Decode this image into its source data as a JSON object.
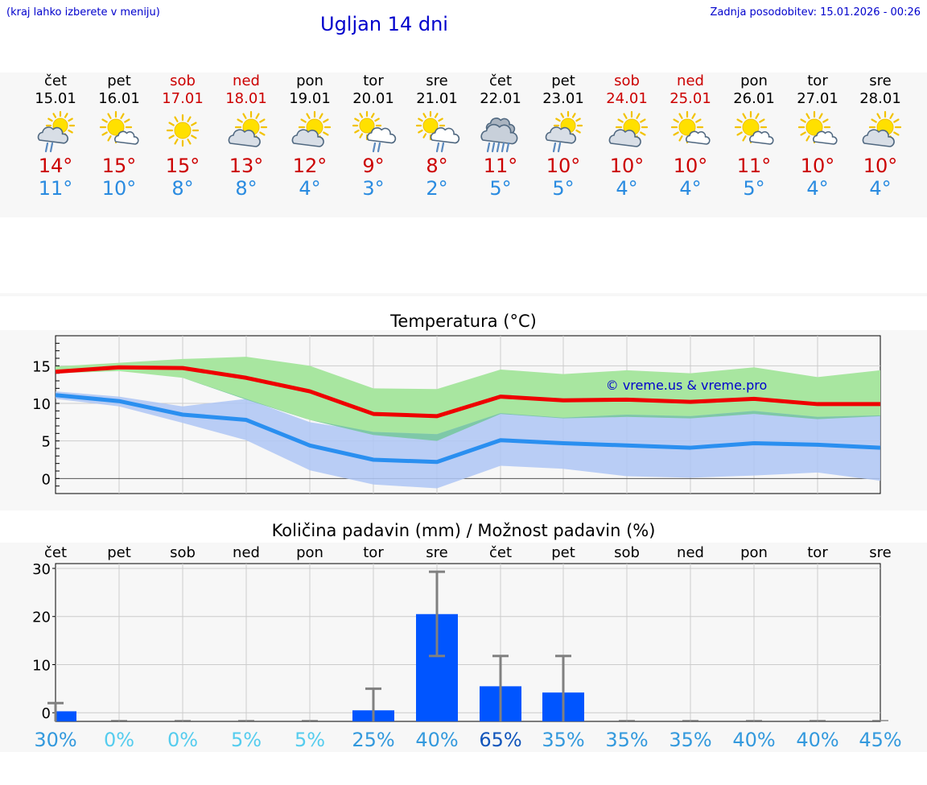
{
  "header": {
    "hint": "(kraj lahko izberete v meniju)",
    "title": "Ugljan 14 dni",
    "updated": "Zadnja posodobitev: 15.01.2026 - 00:26"
  },
  "days": [
    {
      "name": "čet",
      "date": "15.01",
      "weekend": false,
      "icon": "partly-sunny-rain-icon",
      "max": "14°",
      "min": "11°"
    },
    {
      "name": "pet",
      "date": "16.01",
      "weekend": false,
      "icon": "sunny-little-cloud-icon",
      "max": "15°",
      "min": "10°"
    },
    {
      "name": "sob",
      "date": "17.01",
      "weekend": true,
      "icon": "sunny-icon",
      "max": "15°",
      "min": "8°"
    },
    {
      "name": "ned",
      "date": "18.01",
      "weekend": true,
      "icon": "partly-cloudy-icon",
      "max": "13°",
      "min": "8°"
    },
    {
      "name": "pon",
      "date": "19.01",
      "weekend": false,
      "icon": "partly-cloudy-icon",
      "max": "12°",
      "min": "4°"
    },
    {
      "name": "tor",
      "date": "20.01",
      "weekend": false,
      "icon": "sun-rain-icon",
      "max": "9°",
      "min": "3°"
    },
    {
      "name": "sre",
      "date": "21.01",
      "weekend": false,
      "icon": "sun-rain-icon",
      "max": "8°",
      "min": "2°"
    },
    {
      "name": "čet",
      "date": "22.01",
      "weekend": false,
      "icon": "cloudy-rain-icon",
      "max": "11°",
      "min": "5°"
    },
    {
      "name": "pet",
      "date": "23.01",
      "weekend": false,
      "icon": "partly-sunny-rain-icon",
      "max": "10°",
      "min": "5°"
    },
    {
      "name": "sob",
      "date": "24.01",
      "weekend": true,
      "icon": "partly-cloudy-icon",
      "max": "10°",
      "min": "4°"
    },
    {
      "name": "ned",
      "date": "25.01",
      "weekend": true,
      "icon": "sunny-little-cloud-icon",
      "max": "10°",
      "min": "4°"
    },
    {
      "name": "pon",
      "date": "26.01",
      "weekend": false,
      "icon": "sunny-little-cloud-icon",
      "max": "11°",
      "min": "5°"
    },
    {
      "name": "tor",
      "date": "27.01",
      "weekend": false,
      "icon": "sunny-little-cloud-icon",
      "max": "10°",
      "min": "4°"
    },
    {
      "name": "sre",
      "date": "28.01",
      "weekend": false,
      "icon": "partly-cloudy-icon",
      "max": "10°",
      "min": "4°"
    }
  ],
  "colors": {
    "max_line": "#ee0000",
    "min_line": "#2a8ff0",
    "max_band": "#a8e6a0",
    "min_band": "#aec6f4",
    "overlap_band": "#7ec8a8",
    "bar": "#0055ff",
    "error_bar": "#808080",
    "watermark": "#0000cc"
  },
  "chart_data": [
    {
      "type": "line",
      "title": "Temperatura (°C)",
      "watermark": "© vreme.us & vreme.pro",
      "ylim": [
        -2,
        19
      ],
      "yticks": [
        0,
        5,
        10,
        15
      ],
      "series": [
        {
          "name": "max",
          "values": [
            14.2,
            14.8,
            14.7,
            13.4,
            11.6,
            8.6,
            8.3,
            10.9,
            10.4,
            10.5,
            10.2,
            10.6,
            9.9,
            9.9
          ],
          "band_low": [
            14.0,
            14.3,
            13.4,
            10.5,
            7.8,
            5.8,
            5.0,
            8.6,
            8.0,
            8.2,
            8.0,
            8.6,
            7.9,
            8.3
          ],
          "band_high": [
            14.9,
            15.4,
            15.9,
            16.2,
            15.0,
            12.0,
            11.9,
            14.5,
            13.9,
            14.4,
            14.0,
            14.8,
            13.5,
            14.4
          ]
        },
        {
          "name": "min",
          "values": [
            11.1,
            10.3,
            8.5,
            7.8,
            4.4,
            2.5,
            2.2,
            5.1,
            4.7,
            4.4,
            4.1,
            4.7,
            4.5,
            4.1
          ],
          "band_low": [
            10.6,
            9.6,
            7.4,
            5.1,
            1.1,
            -0.8,
            -1.3,
            1.7,
            1.3,
            0.3,
            0.1,
            0.4,
            0.8,
            -0.3
          ],
          "band_high": [
            11.6,
            10.9,
            9.6,
            10.6,
            7.5,
            6.2,
            5.9,
            8.7,
            8.1,
            8.5,
            8.3,
            9.0,
            8.2,
            8.4
          ]
        }
      ]
    },
    {
      "type": "bar",
      "title": "Količina padavin (mm) / Možnost padavin (%)",
      "categories": [
        "čet",
        "pet",
        "sob",
        "ned",
        "pon",
        "tor",
        "sre",
        "čet",
        "pet",
        "sob",
        "ned",
        "pon",
        "tor",
        "sre"
      ],
      "values": [
        0.3,
        0,
        0,
        0,
        0,
        0.5,
        20.5,
        5.5,
        4.2,
        0,
        0,
        0,
        0,
        0
      ],
      "error_high": [
        2.0,
        0,
        0,
        0,
        0,
        5.0,
        29.3,
        11.8,
        11.8,
        0,
        0,
        0,
        0,
        0
      ],
      "error_low": [
        0,
        0,
        0,
        0,
        0,
        0,
        11.8,
        0,
        0,
        0,
        0,
        0,
        0,
        0
      ],
      "ylim": [
        -1.8,
        31
      ],
      "yticks": [
        0,
        10,
        20,
        30
      ],
      "probabilities": [
        "30%",
        "0%",
        "0%",
        "5%",
        "5%",
        "25%",
        "40%",
        "65%",
        "35%",
        "35%",
        "35%",
        "40%",
        "40%",
        "45%"
      ],
      "probability_colors": [
        "#3399dd",
        "#55ccee",
        "#55ccee",
        "#55ccee",
        "#55ccee",
        "#3399dd",
        "#3399dd",
        "#1155bb",
        "#3399dd",
        "#3399dd",
        "#3399dd",
        "#3399dd",
        "#3399dd",
        "#3399dd"
      ]
    }
  ]
}
